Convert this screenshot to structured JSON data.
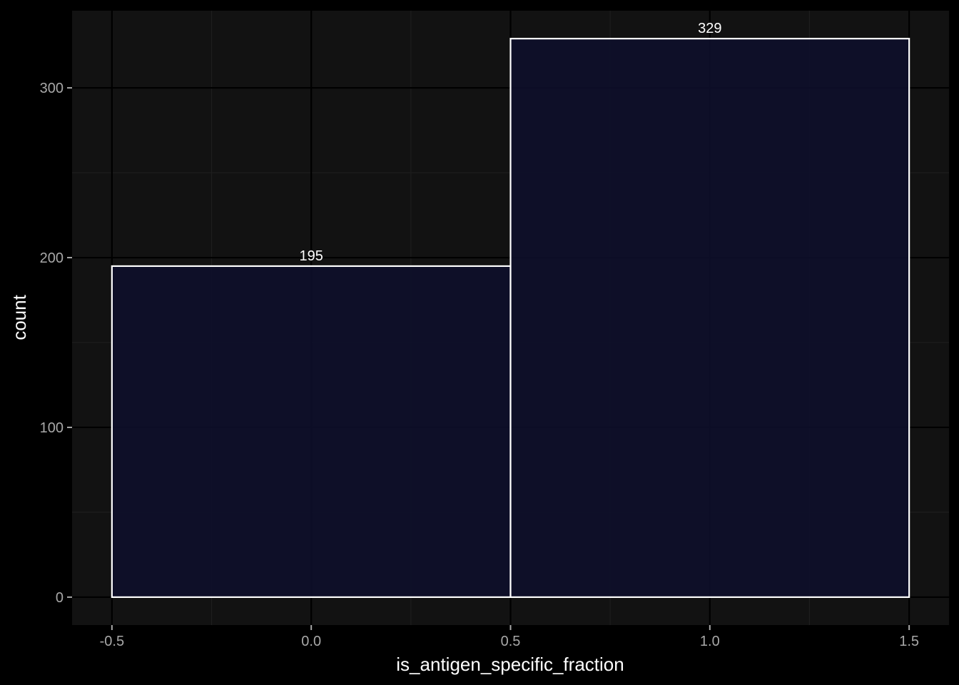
{
  "chart_data": {
    "type": "bar",
    "xlabel": "is_antigen_specific_fraction",
    "ylabel": "count",
    "bins": [
      {
        "x_start": -0.5,
        "x_end": 0.5,
        "value": 195,
        "label": "195"
      },
      {
        "x_start": 0.5,
        "x_end": 1.5,
        "value": 329,
        "label": "329"
      }
    ],
    "x_ticks": [
      {
        "value": -0.5,
        "label": "-0.5"
      },
      {
        "value": 0.0,
        "label": "0.0"
      },
      {
        "value": 0.5,
        "label": "0.5"
      },
      {
        "value": 1.0,
        "label": "1.0"
      },
      {
        "value": 1.5,
        "label": "1.5"
      }
    ],
    "y_ticks": [
      {
        "value": 0,
        "label": "0"
      },
      {
        "value": 100,
        "label": "100"
      },
      {
        "value": 200,
        "label": "200"
      },
      {
        "value": 300,
        "label": "300"
      }
    ],
    "xlim": [
      -0.6,
      1.6
    ],
    "ylim": [
      -16.45,
      345.45
    ],
    "grid": true,
    "colors": {
      "page_background": "#000000",
      "panel_background": "#121212",
      "grid_major": "#000000",
      "grid_minor": "#1e1e1e",
      "bar_fill": "#0e0f2b",
      "bar_outline": "#ffffff"
    }
  }
}
